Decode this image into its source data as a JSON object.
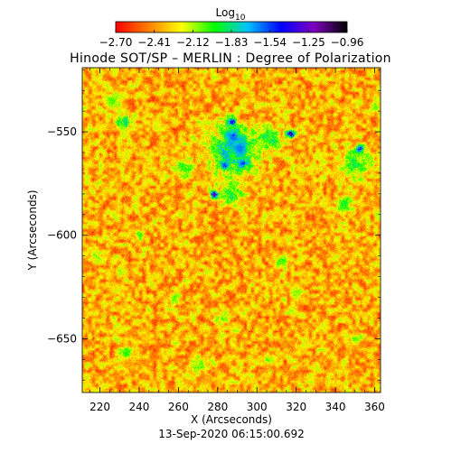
{
  "chart_data": {
    "type": "heatmap",
    "title": "Hinode SOT/SP – MERLIN : Degree of Polarization",
    "xlabel": "X (Arcseconds)",
    "ylabel": "Y (Arcseconds)",
    "timestamp": "13-Sep-2020 06:15:00.692",
    "xlim": [
      211,
      363
    ],
    "ylim": [
      -676,
      -519
    ],
    "x_ticks": [
      220,
      240,
      260,
      280,
      300,
      320,
      340,
      360
    ],
    "x_tick_labels": [
      "220",
      "240",
      "260",
      "280",
      "300",
      "320",
      "340",
      "360"
    ],
    "y_ticks": [
      -550,
      -600,
      -650
    ],
    "y_tick_labels": [
      "−550",
      "−600",
      "−650"
    ],
    "colorbar": {
      "label": "Log",
      "label_subscript": "10",
      "range": [
        -2.7,
        -0.96
      ],
      "ticks": [
        -2.7,
        -2.41,
        -2.12,
        -1.83,
        -1.54,
        -1.25,
        -0.96
      ],
      "tick_labels": [
        "−2.70",
        "−2.41",
        "−2.12",
        "−1.83",
        "−1.54",
        "−1.25",
        "−0.96"
      ],
      "colors": [
        "#ff0000",
        "#ff8000",
        "#ffff00",
        "#00ff00",
        "#00c0ff",
        "#0000ff",
        "#8000c0",
        "#000000"
      ]
    },
    "background_level": -2.35,
    "features": [
      {
        "x": 288,
        "y": -552,
        "radius": 3,
        "level": -1.0
      },
      {
        "x": 291,
        "y": -558,
        "radius": 3,
        "level": -1.0
      },
      {
        "x": 287,
        "y": -545,
        "radius": 2,
        "level": -1.05
      },
      {
        "x": 283,
        "y": -566,
        "radius": 2,
        "level": -1.1
      },
      {
        "x": 293,
        "y": -565,
        "radius": 2,
        "level": -1.1
      },
      {
        "x": 317,
        "y": -551,
        "radius": 2,
        "level": -1.0
      },
      {
        "x": 278,
        "y": -580,
        "radius": 2,
        "level": -1.1
      },
      {
        "x": 352,
        "y": -558,
        "radius": 2,
        "level": -1.1
      },
      {
        "x": 288,
        "y": -558,
        "radius": 12,
        "level": -1.65
      },
      {
        "x": 306,
        "y": -553,
        "radius": 6,
        "level": -1.8
      },
      {
        "x": 232,
        "y": -545,
        "radius": 4,
        "level": -1.8
      },
      {
        "x": 350,
        "y": -565,
        "radius": 7,
        "level": -1.85
      },
      {
        "x": 287,
        "y": -580,
        "radius": 6,
        "level": -1.85
      },
      {
        "x": 262,
        "y": -567,
        "radius": 5,
        "level": -1.9
      },
      {
        "x": 344,
        "y": -585,
        "radius": 4,
        "level": -1.9
      },
      {
        "x": 270,
        "y": -662,
        "radius": 4,
        "level": -1.95
      },
      {
        "x": 233,
        "y": -657,
        "radius": 4,
        "level": -1.95
      },
      {
        "x": 240,
        "y": -600,
        "radius": 3,
        "level": -1.95
      },
      {
        "x": 312,
        "y": -612,
        "radius": 3,
        "level": -1.95
      },
      {
        "x": 282,
        "y": -640,
        "radius": 3,
        "level": -1.95
      },
      {
        "x": 227,
        "y": -535,
        "radius": 4,
        "level": -2.0
      },
      {
        "x": 360,
        "y": -538,
        "radius": 3,
        "level": -2.0
      },
      {
        "x": 305,
        "y": -660,
        "radius": 3,
        "level": -2.0
      },
      {
        "x": 320,
        "y": -628,
        "radius": 3,
        "level": -2.0
      },
      {
        "x": 258,
        "y": -630,
        "radius": 3,
        "level": -2.0
      },
      {
        "x": 218,
        "y": -610,
        "radius": 3,
        "level": -2.0
      },
      {
        "x": 350,
        "y": -650,
        "radius": 3,
        "level": -2.0
      }
    ]
  }
}
